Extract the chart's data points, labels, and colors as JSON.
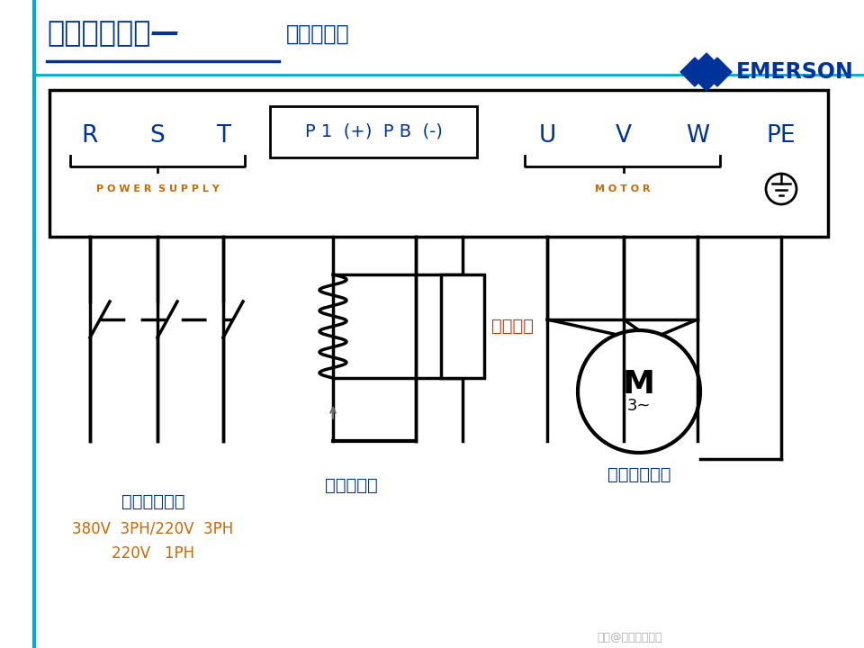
{
  "bg_color": "#ffffff",
  "title_cn": "变频器的构成—",
  "title_cn2": "主回路接口",
  "title_color": "#003399",
  "border_color": "#000000",
  "line_color": "#000000",
  "label_color_blue": "#003399",
  "label_color_orange": "#cc6600",
  "label_color_red": "#cc3300",
  "power_supply_label": "P O W E R  S U P P L Y",
  "motor_label": "M O T O R",
  "braking_resistor_label": "制动电阻",
  "dc_reactor_label": "直流电抗器",
  "input_label1": "工频电网输入",
  "input_label2": "380V  3PH/220V  3PH",
  "input_label3": "220V   1PH",
  "motor_label_cn": "三相交流电机",
  "sidebar_color": "#00aacc",
  "emerson_blue": "#003399"
}
